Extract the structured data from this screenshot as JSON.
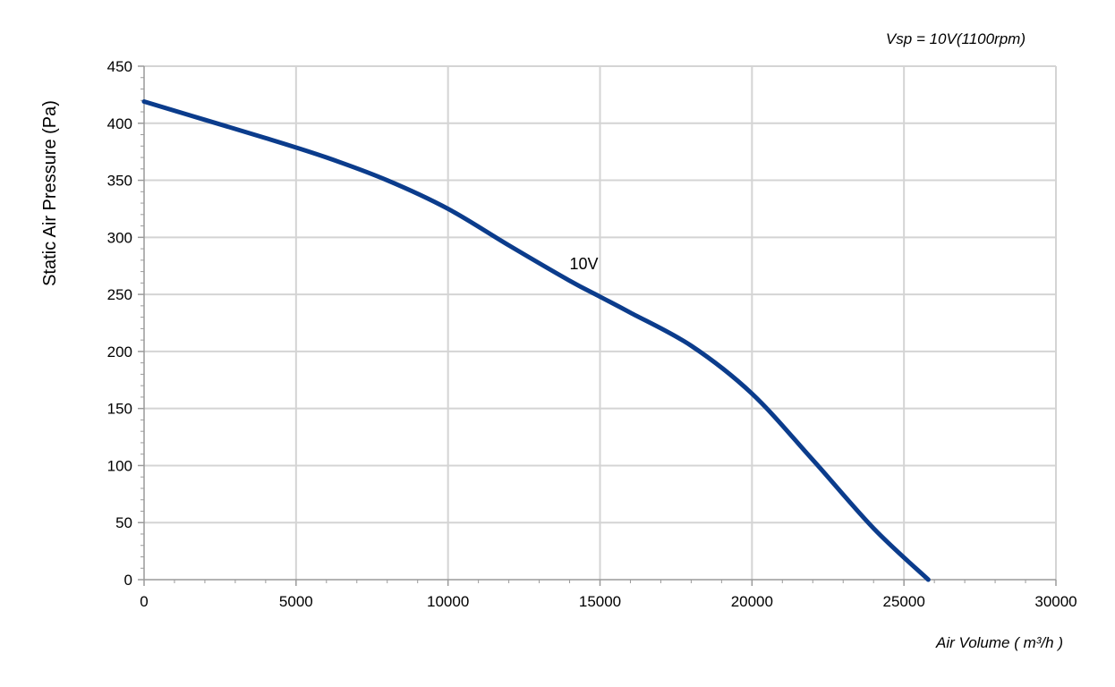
{
  "chart_data": {
    "type": "line",
    "title": "",
    "annotation_top_right": "Vsp = 10V(1100rpm)",
    "xlabel": "Air Volume ( m³/h )",
    "ylabel": "Static Air Pressure  (Pa)",
    "xlim": [
      0,
      30000
    ],
    "ylim": [
      0,
      450
    ],
    "xticks": [
      0,
      5000,
      10000,
      15000,
      20000,
      25000,
      30000
    ],
    "yticks": [
      0,
      50,
      100,
      150,
      200,
      250,
      300,
      350,
      400,
      450
    ],
    "grid": true,
    "colors": {
      "series": "#0b3c8c",
      "grid": "#d4d4d4",
      "axis": "#9a9a9a"
    },
    "series": [
      {
        "name": "10V",
        "x": [
          0,
          2000,
          4000,
          6000,
          8000,
          10000,
          12000,
          14000,
          15000,
          16000,
          18000,
          20000,
          22000,
          24000,
          25800
        ],
        "y": [
          419,
          403,
          387,
          370,
          350,
          325,
          293,
          262,
          248,
          234,
          205,
          163,
          105,
          45,
          0
        ]
      }
    ],
    "series_label": {
      "text": "10V",
      "x": 14000,
      "y": 272
    }
  }
}
